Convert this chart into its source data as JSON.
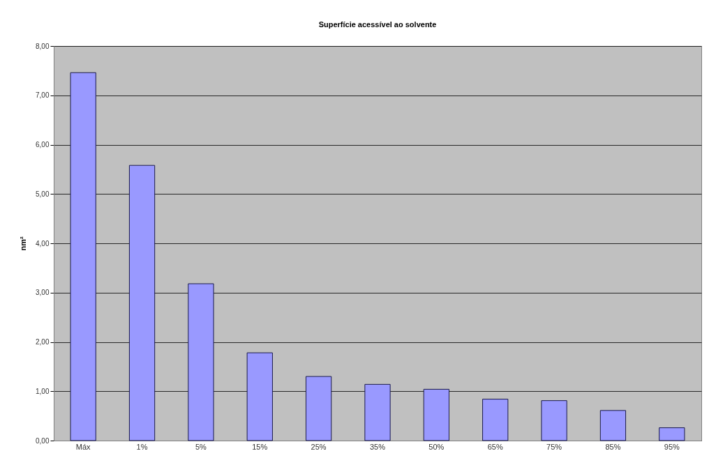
{
  "chart_data": {
    "type": "bar",
    "title": "Superfície acessível ao solvente",
    "ylabel": "nm²",
    "categories": [
      "Máx",
      "1%",
      "5%",
      "15%",
      "25%",
      "35%",
      "50%",
      "65%",
      "75%",
      "85%",
      "95%"
    ],
    "values": [
      7.46,
      5.58,
      3.18,
      1.78,
      1.3,
      1.14,
      1.04,
      0.84,
      0.81,
      0.61,
      0.26
    ],
    "color": "#9999ff",
    "ylim": [
      0,
      8
    ],
    "yticks": [
      {
        "value": 0,
        "label": "0,00"
      },
      {
        "value": 1,
        "label": "1,00"
      },
      {
        "value": 2,
        "label": "2,00"
      },
      {
        "value": 3,
        "label": "3,00"
      },
      {
        "value": 4,
        "label": "4,00"
      },
      {
        "value": 5,
        "label": "5,00"
      },
      {
        "value": 6,
        "label": "6,00"
      },
      {
        "value": 7,
        "label": "7,00"
      },
      {
        "value": 8,
        "label": "8,00"
      }
    ],
    "grid": "y"
  }
}
